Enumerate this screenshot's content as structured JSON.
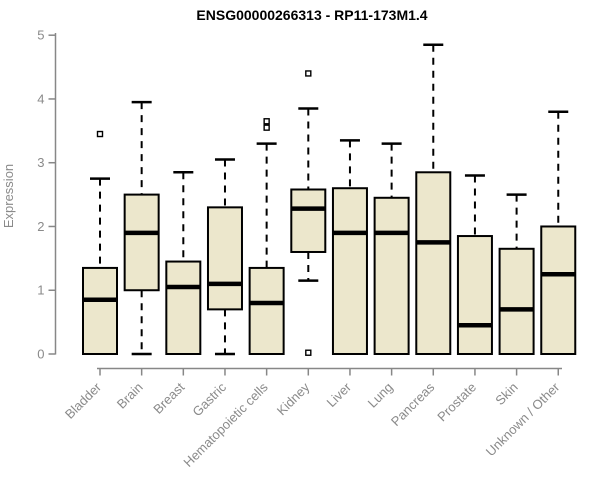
{
  "chart_data": {
    "type": "boxplot",
    "title": "ENSG00000266313 - RP11-173M1.4",
    "xlabel": "",
    "ylabel": "Expression",
    "ylim": [
      0,
      5
    ],
    "yticks": [
      0,
      1,
      2,
      3,
      4,
      5
    ],
    "grid": false,
    "legend": "none",
    "categories": [
      "Bladder",
      "Brain",
      "Breast",
      "Gastric",
      "Hematopoietic cells",
      "Kidney",
      "Liver",
      "Lung",
      "Pancreas",
      "Prostate",
      "Skin",
      "Unknown / Other"
    ],
    "series": [
      {
        "category": "Bladder",
        "whisker_low": 0,
        "q1": 0,
        "median": 0.85,
        "q3": 1.35,
        "whisker_high": 2.75,
        "outliers": [
          3.45
        ]
      },
      {
        "category": "Brain",
        "whisker_low": 0,
        "q1": 1.0,
        "median": 1.9,
        "q3": 2.5,
        "whisker_high": 3.95,
        "outliers": []
      },
      {
        "category": "Breast",
        "whisker_low": 0,
        "q1": 0,
        "median": 1.05,
        "q3": 1.45,
        "whisker_high": 2.85,
        "outliers": []
      },
      {
        "category": "Gastric",
        "whisker_low": 0,
        "q1": 0.7,
        "median": 1.1,
        "q3": 2.3,
        "whisker_high": 3.05,
        "outliers": []
      },
      {
        "category": "Hematopoietic cells",
        "whisker_low": 0,
        "q1": 0,
        "median": 0.8,
        "q3": 1.35,
        "whisker_high": 3.3,
        "outliers": [
          3.55,
          3.65
        ]
      },
      {
        "category": "Kidney",
        "whisker_low": 1.15,
        "q1": 1.6,
        "median": 2.28,
        "q3": 2.58,
        "whisker_high": 3.85,
        "outliers": [
          4.4,
          0.02
        ]
      },
      {
        "category": "Liver",
        "whisker_low": 0,
        "q1": 0,
        "median": 1.9,
        "q3": 2.6,
        "whisker_high": 3.35,
        "outliers": []
      },
      {
        "category": "Lung",
        "whisker_low": 0,
        "q1": 0,
        "median": 1.9,
        "q3": 2.45,
        "whisker_high": 3.3,
        "outliers": []
      },
      {
        "category": "Pancreas",
        "whisker_low": 0,
        "q1": 0,
        "median": 1.75,
        "q3": 2.85,
        "whisker_high": 4.85,
        "outliers": []
      },
      {
        "category": "Prostate",
        "whisker_low": 0,
        "q1": 0,
        "median": 0.45,
        "q3": 1.85,
        "whisker_high": 2.8,
        "outliers": []
      },
      {
        "category": "Skin",
        "whisker_low": 0,
        "q1": 0,
        "median": 0.7,
        "q3": 1.65,
        "whisker_high": 2.5,
        "outliers": []
      },
      {
        "category": "Unknown / Other",
        "whisker_low": 0,
        "q1": 0,
        "median": 1.25,
        "q3": 2.0,
        "whisker_high": 3.8,
        "outliers": []
      }
    ],
    "colors": {
      "background": "#ffffff",
      "box_fill": "#ECE7CC",
      "box_border": "#000000",
      "median": "#000000",
      "whisker": "#000000",
      "outlier_stroke": "#000000",
      "outlier_fill": "#ffffff",
      "axis": "#878787",
      "axis_text": "#8a8a8a",
      "title": "#000000"
    }
  }
}
